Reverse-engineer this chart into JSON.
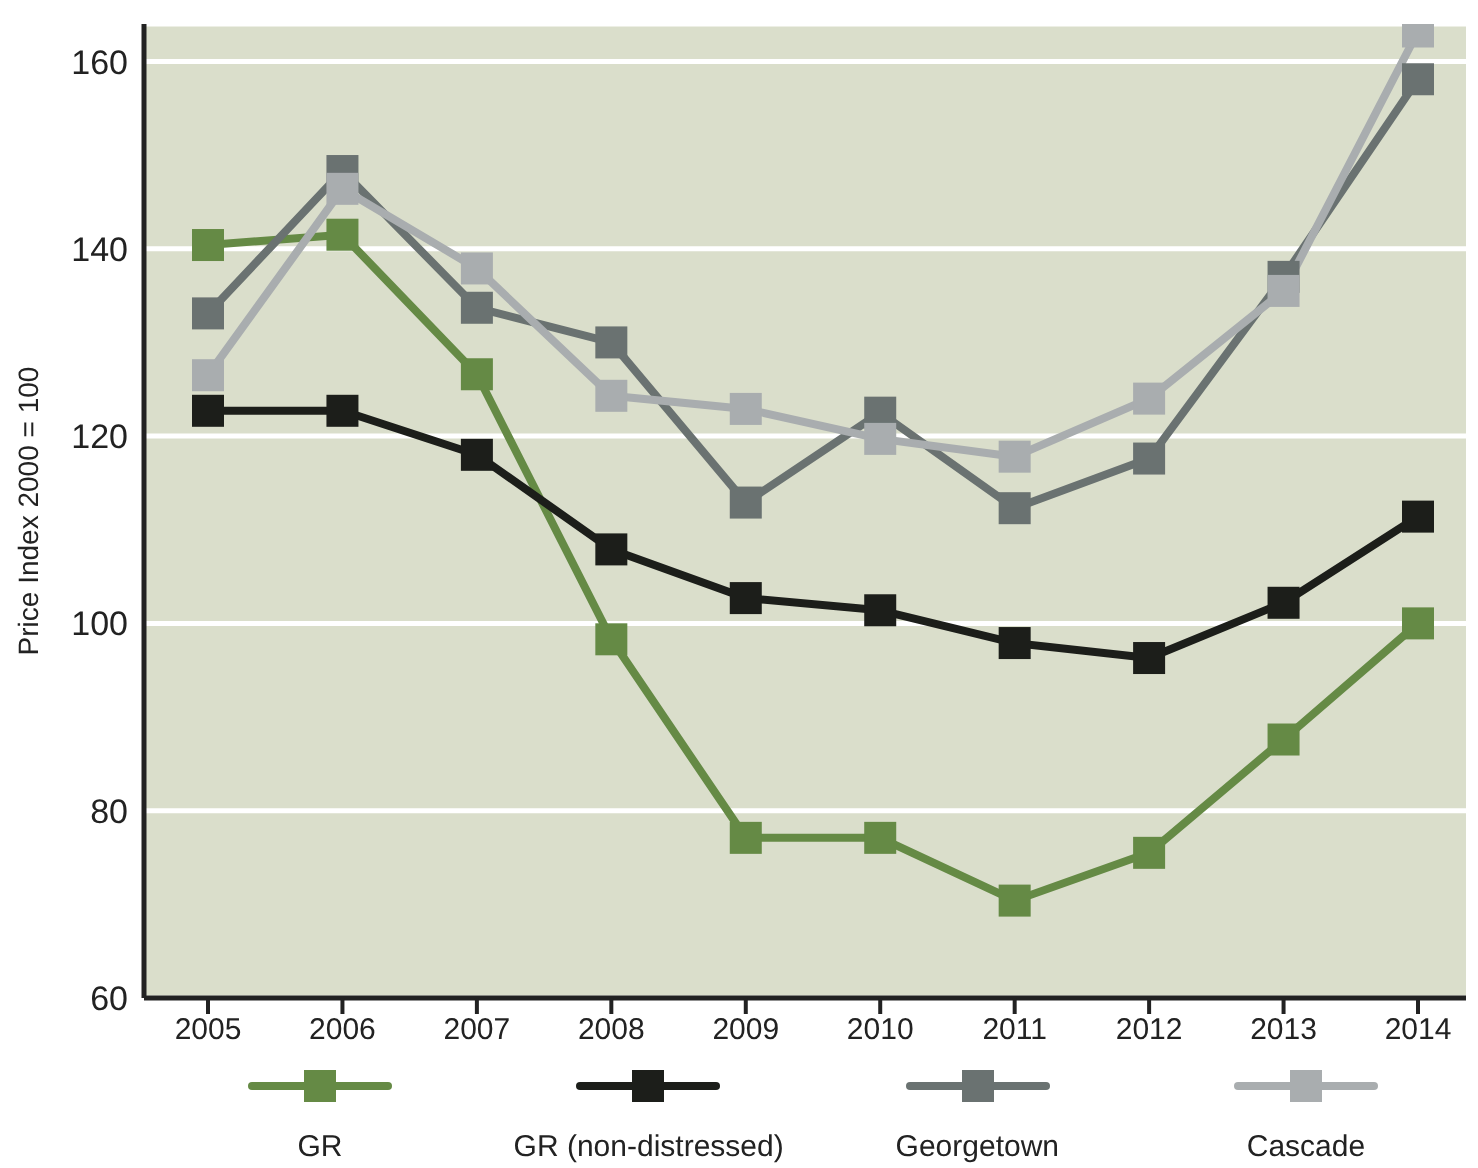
{
  "chart_data": {
    "type": "line",
    "ylabel": "Price Index 2000 = 100",
    "categories": [
      "2005",
      "2006",
      "2007",
      "2008",
      "2009",
      "2010",
      "2011",
      "2012",
      "2013",
      "2014"
    ],
    "series": [
      {
        "name": "GR",
        "color": "#658a45",
        "values": [
          140.4,
          141.5,
          126.6,
          98.3,
          77.1,
          77.1,
          70.4,
          75.5,
          87.6,
          100
        ]
      },
      {
        "name": "GR (non-distressed)",
        "color": "#1c1e1a",
        "values": [
          122.7,
          122.7,
          118,
          107.9,
          102.7,
          101.4,
          97.9,
          96.3,
          102.2,
          111.4
        ]
      },
      {
        "name": "Georgetown",
        "color": "#6a7271",
        "values": [
          133.1,
          148.3,
          133.7,
          130,
          112.9,
          122.5,
          112.3,
          117.6,
          137,
          158.1
        ]
      },
      {
        "name": "Cascade",
        "color": "#a9adaf",
        "values": [
          126.5,
          146.4,
          137.9,
          124.3,
          122.9,
          119.7,
          117.8,
          124,
          135.5,
          163.2
        ]
      }
    ],
    "ylim": [
      60,
      164
    ],
    "yticks": [
      60,
      80,
      100,
      120,
      140,
      160
    ],
    "grid": "y",
    "legend": "bottom",
    "marker": "square",
    "line_style": "solid"
  }
}
